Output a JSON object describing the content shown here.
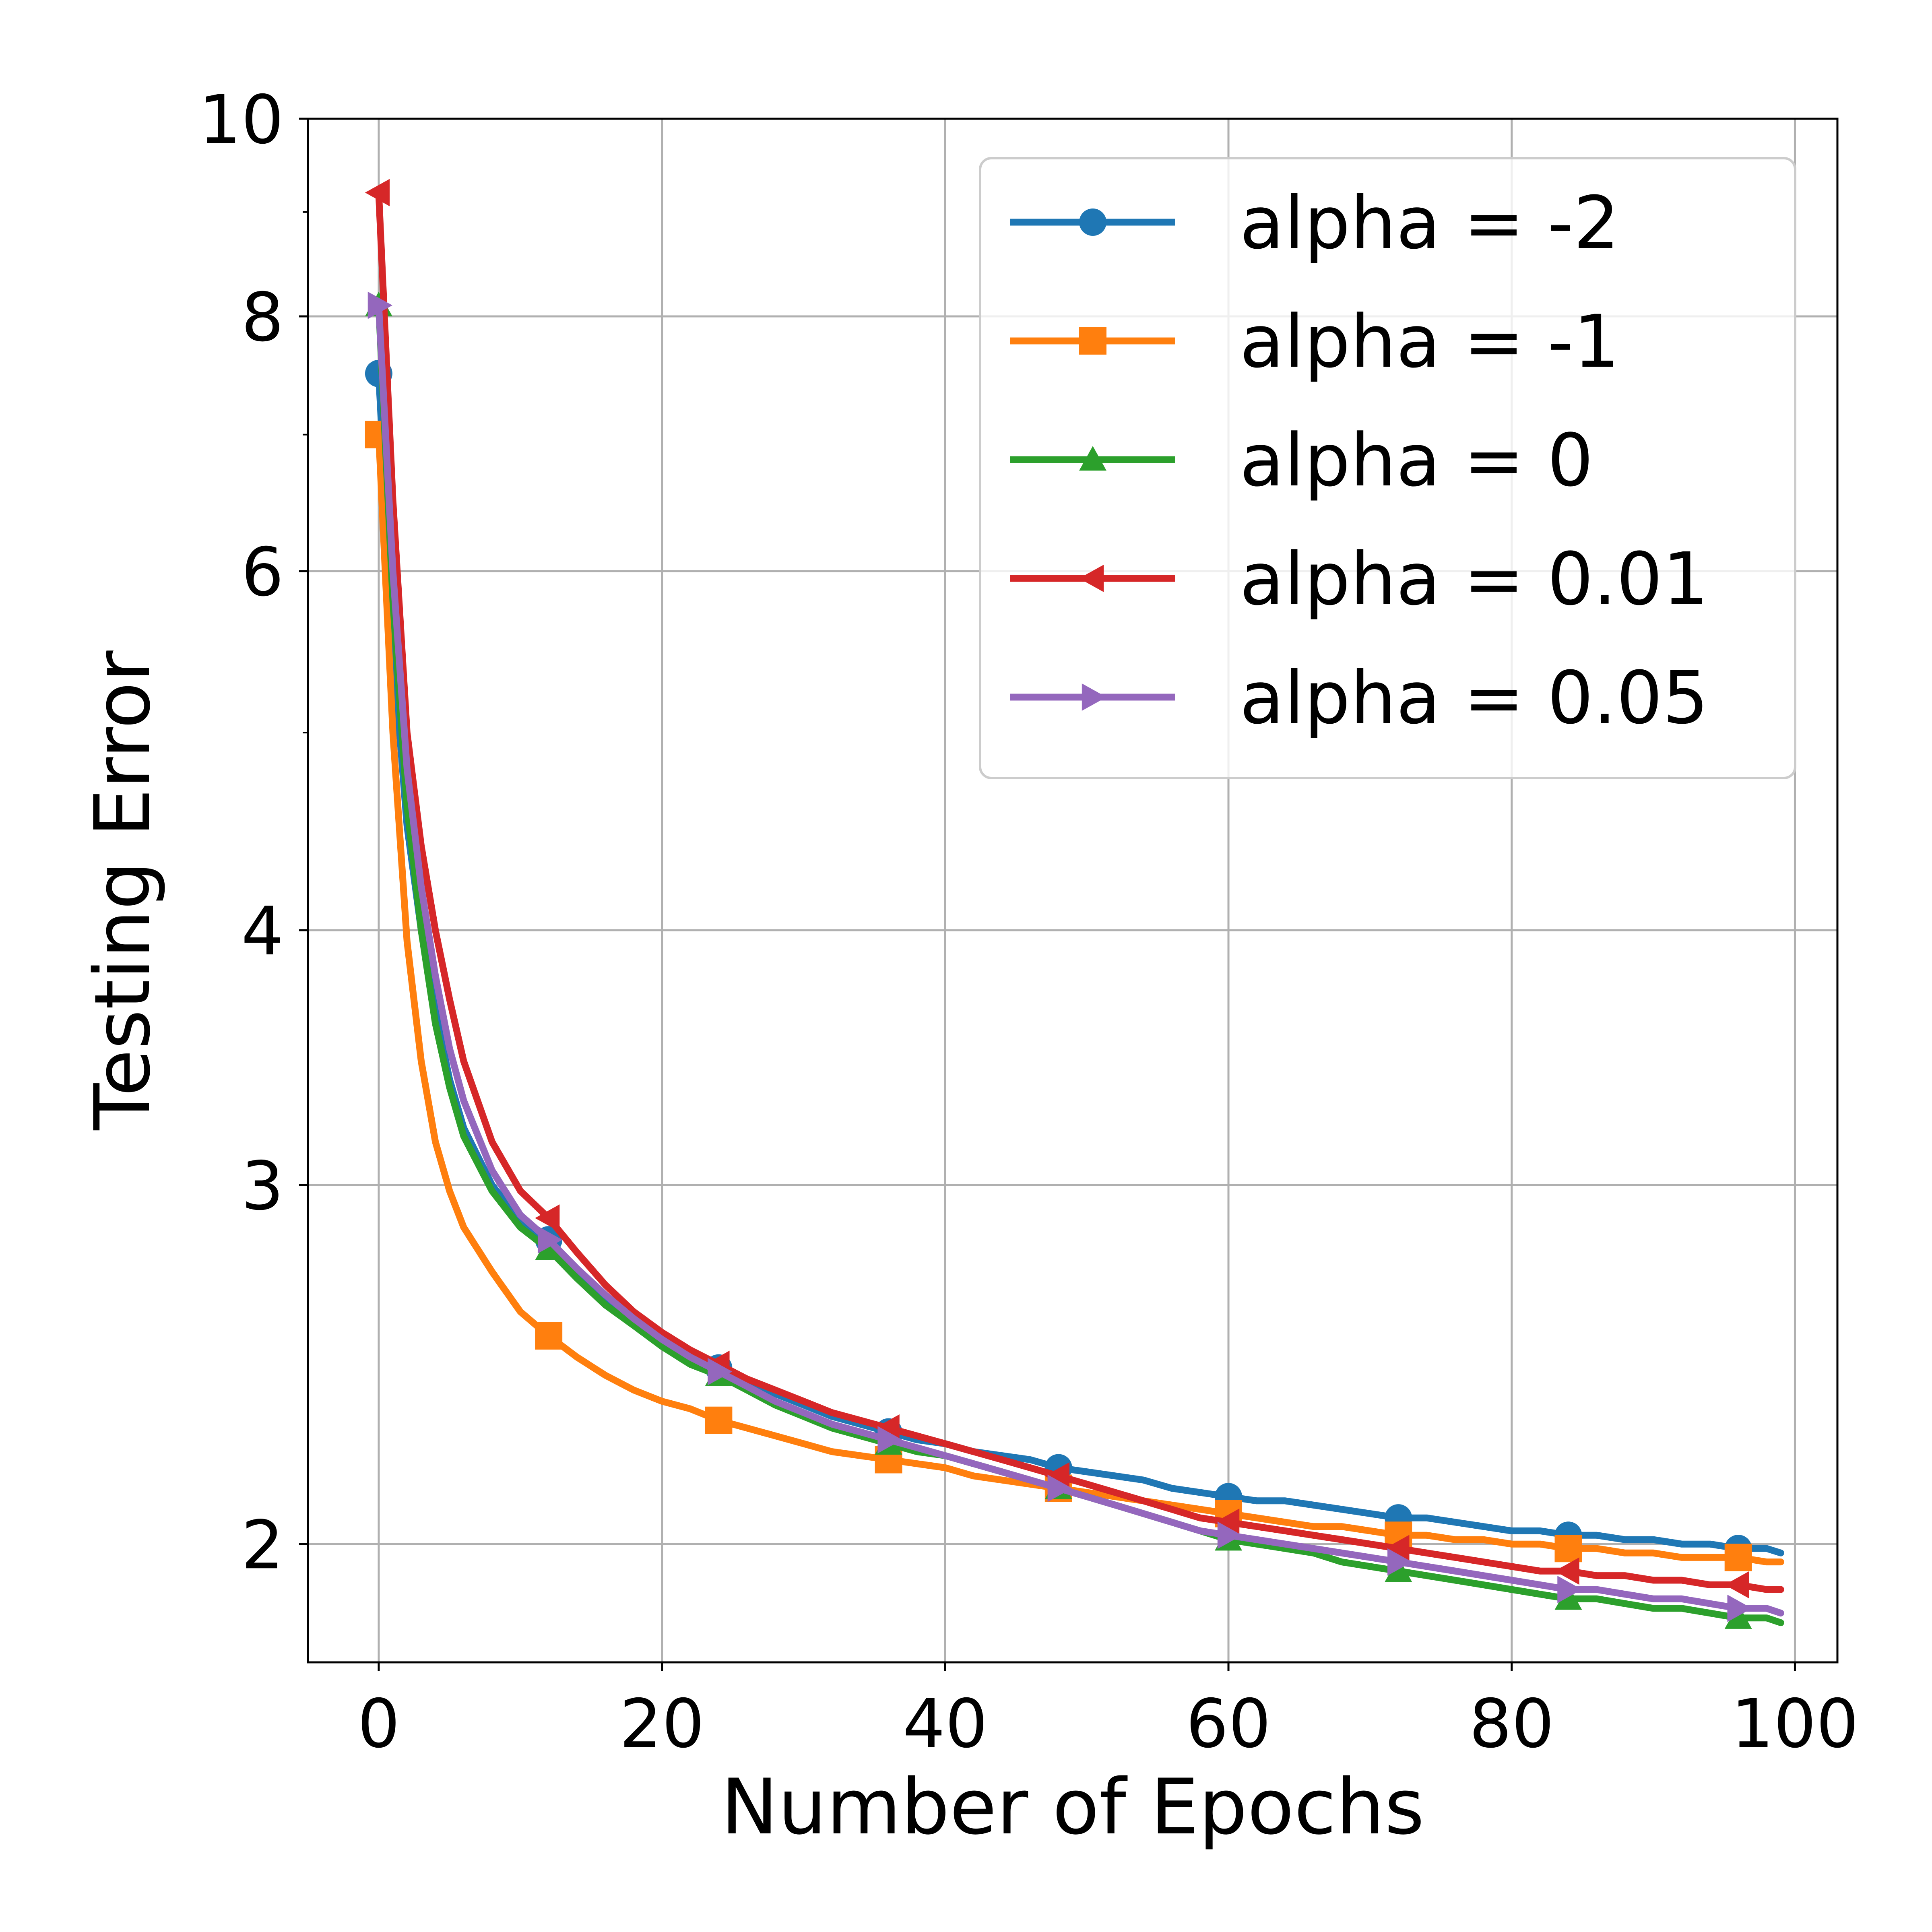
{
  "chart_data": {
    "type": "line",
    "title": "",
    "xlabel": "Number of Epochs",
    "ylabel": "Testing Error",
    "xlim": [
      -5,
      103
    ],
    "ylim": [
      1.75,
      10
    ],
    "yscale": "log",
    "grid": true,
    "legend_position": "top-right",
    "x_ticks": [
      0,
      20,
      40,
      60,
      80,
      100
    ],
    "x_tick_labels": [
      "0",
      "20",
      "40",
      "60",
      "80",
      "100"
    ],
    "y_ticks": [
      2,
      3,
      4,
      6,
      8,
      10
    ],
    "y_tick_labels": [
      "2",
      "3",
      "4",
      "6",
      "8",
      "10"
    ],
    "y_minor_ticks": [
      5,
      7,
      9
    ],
    "x": [
      0,
      1,
      2,
      3,
      4,
      5,
      6,
      8,
      10,
      12,
      14,
      16,
      18,
      20,
      22,
      24,
      26,
      28,
      30,
      32,
      34,
      36,
      38,
      40,
      42,
      44,
      46,
      48,
      50,
      52,
      54,
      56,
      58,
      60,
      62,
      64,
      66,
      68,
      70,
      72,
      74,
      76,
      78,
      80,
      82,
      84,
      86,
      88,
      90,
      92,
      94,
      96,
      98,
      99
    ],
    "marker_x": [
      0,
      12,
      24,
      36,
      48,
      60,
      72,
      84,
      96
    ],
    "series": [
      {
        "name": "alpha = -2",
        "color": "#1f77b4",
        "marker": "circle",
        "values": [
          7.5,
          5.5,
          4.5,
          4.0,
          3.65,
          3.38,
          3.2,
          3.0,
          2.88,
          2.82,
          2.72,
          2.63,
          2.57,
          2.52,
          2.47,
          2.44,
          2.4,
          2.37,
          2.34,
          2.31,
          2.29,
          2.27,
          2.25,
          2.24,
          2.22,
          2.21,
          2.2,
          2.18,
          2.17,
          2.16,
          2.15,
          2.13,
          2.12,
          2.11,
          2.1,
          2.1,
          2.09,
          2.08,
          2.07,
          2.06,
          2.06,
          2.05,
          2.04,
          2.03,
          2.03,
          2.02,
          2.02,
          2.01,
          2.01,
          2.0,
          2.0,
          1.99,
          1.99,
          1.98
        ]
      },
      {
        "name": "alpha = -1",
        "color": "#ff7f0e",
        "marker": "square",
        "values": [
          7.0,
          5.0,
          3.95,
          3.45,
          3.15,
          2.98,
          2.86,
          2.72,
          2.6,
          2.53,
          2.47,
          2.42,
          2.38,
          2.35,
          2.33,
          2.3,
          2.28,
          2.26,
          2.24,
          2.22,
          2.21,
          2.2,
          2.19,
          2.18,
          2.16,
          2.15,
          2.14,
          2.13,
          2.12,
          2.11,
          2.1,
          2.09,
          2.08,
          2.07,
          2.06,
          2.05,
          2.04,
          2.04,
          2.03,
          2.02,
          2.02,
          2.01,
          2.01,
          2.0,
          2.0,
          1.99,
          1.99,
          1.98,
          1.98,
          1.97,
          1.97,
          1.97,
          1.96,
          1.96
        ]
      },
      {
        "name": "alpha = 0",
        "color": "#2ca02c",
        "marker": "triangle-up",
        "values": [
          8.1,
          5.8,
          4.6,
          4.0,
          3.6,
          3.35,
          3.17,
          2.98,
          2.86,
          2.79,
          2.7,
          2.62,
          2.56,
          2.5,
          2.45,
          2.42,
          2.38,
          2.34,
          2.31,
          2.28,
          2.26,
          2.24,
          2.22,
          2.21,
          2.19,
          2.17,
          2.15,
          2.13,
          2.11,
          2.09,
          2.07,
          2.05,
          2.03,
          2.01,
          2.0,
          1.99,
          1.98,
          1.96,
          1.95,
          1.94,
          1.93,
          1.92,
          1.91,
          1.9,
          1.89,
          1.88,
          1.88,
          1.87,
          1.86,
          1.86,
          1.85,
          1.84,
          1.84,
          1.83
        ]
      },
      {
        "name": "alpha = 0.01",
        "color": "#d62728",
        "marker": "triangle-left",
        "values": [
          9.2,
          6.5,
          5.0,
          4.4,
          4.0,
          3.7,
          3.45,
          3.15,
          2.98,
          2.89,
          2.78,
          2.68,
          2.6,
          2.54,
          2.49,
          2.45,
          2.41,
          2.38,
          2.35,
          2.32,
          2.3,
          2.28,
          2.26,
          2.24,
          2.22,
          2.2,
          2.18,
          2.16,
          2.14,
          2.12,
          2.1,
          2.08,
          2.06,
          2.05,
          2.04,
          2.03,
          2.02,
          2.01,
          2.0,
          1.99,
          1.98,
          1.97,
          1.96,
          1.95,
          1.94,
          1.94,
          1.93,
          1.93,
          1.92,
          1.92,
          1.91,
          1.91,
          1.9,
          1.9
        ]
      },
      {
        "name": "alpha = 0.05",
        "color": "#9467bd",
        "marker": "triangle-right",
        "values": [
          8.1,
          6.0,
          4.8,
          4.2,
          3.8,
          3.5,
          3.3,
          3.05,
          2.9,
          2.82,
          2.73,
          2.65,
          2.58,
          2.52,
          2.47,
          2.43,
          2.39,
          2.35,
          2.32,
          2.29,
          2.27,
          2.25,
          2.23,
          2.21,
          2.19,
          2.17,
          2.15,
          2.13,
          2.11,
          2.09,
          2.07,
          2.05,
          2.03,
          2.02,
          2.01,
          2.0,
          1.99,
          1.98,
          1.97,
          1.96,
          1.95,
          1.94,
          1.93,
          1.92,
          1.91,
          1.9,
          1.9,
          1.89,
          1.88,
          1.88,
          1.87,
          1.86,
          1.86,
          1.85
        ]
      }
    ]
  }
}
